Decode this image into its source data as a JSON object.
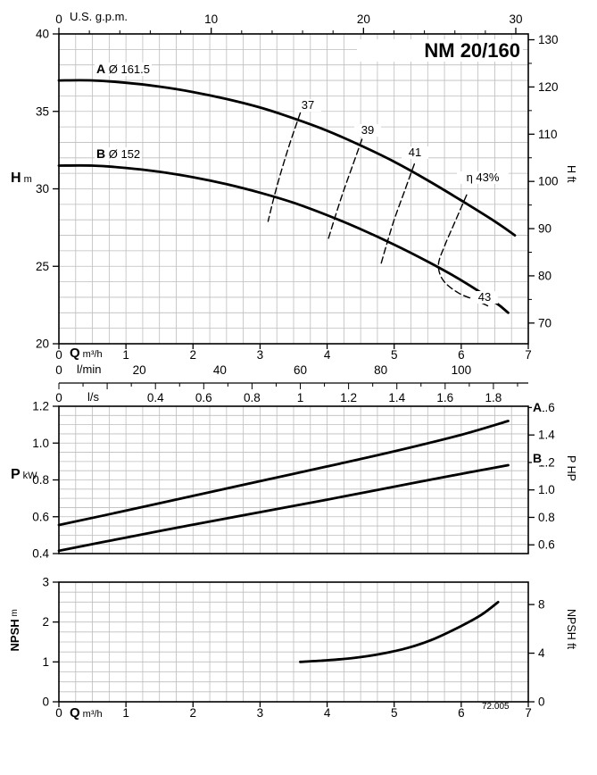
{
  "meta": {
    "footnote": "72.005"
  },
  "colors": {
    "curve": "#000000",
    "grid": "#bdbdbd",
    "axis": "#000000",
    "background": "#ffffff"
  },
  "chart_data": [
    {
      "name": "head-flow-chart",
      "type": "line",
      "title": "NM 20/160",
      "x": {
        "label": "Q",
        "unit": "m³/h",
        "min": 0,
        "max": 7,
        "ticks": [
          0,
          1,
          2,
          3,
          4,
          5,
          6,
          7
        ]
      },
      "x_lmin": {
        "label": "l/min",
        "ticks": [
          0,
          20,
          40,
          60,
          80,
          100
        ],
        "lmin_per_m3h": 16.6667
      },
      "x_ls": {
        "label": "l/s",
        "ticks": [
          0,
          0.4,
          0.6,
          0.8,
          1,
          1.2,
          1.4,
          1.6,
          1.8
        ],
        "ls_per_m3h": 0.277778
      },
      "x_gpm": {
        "label": "U.S. g.p.m.",
        "ticks": [
          0,
          10,
          20,
          30
        ],
        "gpm_per_m3h": 4.40287
      },
      "y": {
        "label": "H",
        "unit": "m",
        "min": 20,
        "max": 40,
        "ticks": [
          20,
          25,
          30,
          35,
          40
        ]
      },
      "y_ft": {
        "label": "H ft",
        "ticks": [
          70,
          80,
          90,
          100,
          110,
          120,
          130
        ],
        "ft_per_m": 3.28084
      },
      "curves": [
        {
          "name": "A",
          "label_letter": "A",
          "label_diameter": "Ø 161.5",
          "points": [
            [
              0,
              37
            ],
            [
              0.5,
              37
            ],
            [
              1,
              36.85
            ],
            [
              1.5,
              36.6
            ],
            [
              2,
              36.25
            ],
            [
              2.5,
              35.8
            ],
            [
              3,
              35.25
            ],
            [
              3.5,
              34.55
            ],
            [
              4,
              33.75
            ],
            [
              4.5,
              32.8
            ],
            [
              5,
              31.75
            ],
            [
              5.5,
              30.55
            ],
            [
              6,
              29.25
            ],
            [
              6.5,
              27.9
            ],
            [
              6.8,
              27
            ]
          ]
        },
        {
          "name": "B",
          "label_letter": "B",
          "label_diameter": "Ø 152",
          "points": [
            [
              0,
              31.5
            ],
            [
              0.5,
              31.5
            ],
            [
              1,
              31.35
            ],
            [
              1.5,
              31.1
            ],
            [
              2,
              30.75
            ],
            [
              2.5,
              30.3
            ],
            [
              3,
              29.75
            ],
            [
              3.5,
              29.1
            ],
            [
              4,
              28.3
            ],
            [
              4.5,
              27.4
            ],
            [
              5,
              26.4
            ],
            [
              5.5,
              25.3
            ],
            [
              6,
              24.1
            ],
            [
              6.5,
              22.7
            ],
            [
              6.7,
              22
            ]
          ]
        }
      ],
      "efficiency_lines": [
        {
          "name": "37",
          "points": [
            [
              3.6,
              34.9
            ],
            [
              3.45,
              33
            ],
            [
              3.32,
              31.2
            ],
            [
              3.21,
              29.5
            ],
            [
              3.12,
              27.9
            ]
          ]
        },
        {
          "name": "39",
          "points": [
            [
              4.52,
              33.2
            ],
            [
              4.38,
              31.5
            ],
            [
              4.24,
              29.8
            ],
            [
              4.12,
              28.2
            ],
            [
              4.02,
              26.8
            ]
          ]
        },
        {
          "name": "41",
          "points": [
            [
              5.3,
              31.6
            ],
            [
              5.15,
              29.8
            ],
            [
              5,
              28
            ],
            [
              4.88,
              26.3
            ],
            [
              4.8,
              25.1
            ]
          ]
        },
        {
          "name": "43",
          "points": [
            [
              6.08,
              29.6
            ],
            [
              5.9,
              27.8
            ],
            [
              5.75,
              26.3
            ],
            [
              5.66,
              25.1
            ],
            [
              5.73,
              24.1
            ],
            [
              5.95,
              23.3
            ],
            [
              6.22,
              22.8
            ],
            [
              6.42,
              22.4
            ]
          ]
        }
      ],
      "efficiency_labels": [
        {
          "text": "37"
        },
        {
          "text": "39"
        },
        {
          "text": "41"
        },
        {
          "text": "η 43%"
        },
        {
          "text": "43"
        }
      ]
    },
    {
      "name": "power-chart",
      "type": "line",
      "x": {
        "min": 0,
        "max": 7
      },
      "y": {
        "label": "P",
        "unit": "kW",
        "min": 0.4,
        "max": 1.2,
        "ticks": [
          0.4,
          0.6,
          0.8,
          1,
          1.2
        ]
      },
      "y_hp": {
        "label": "P HP",
        "ticks": [
          0.6,
          0.8,
          1,
          1.2,
          1.4,
          1.6
        ],
        "kw_per_hp": 0.7457
      },
      "curves": [
        {
          "name": "A",
          "points": [
            [
              0,
              0.555
            ],
            [
              1,
              0.633
            ],
            [
              2,
              0.713
            ],
            [
              3,
              0.793
            ],
            [
              4,
              0.873
            ],
            [
              5,
              0.955
            ],
            [
              6,
              1.045
            ],
            [
              6.7,
              1.12
            ]
          ]
        },
        {
          "name": "B",
          "points": [
            [
              0,
              0.415
            ],
            [
              1,
              0.487
            ],
            [
              2,
              0.557
            ],
            [
              3,
              0.625
            ],
            [
              4,
              0.693
            ],
            [
              5,
              0.763
            ],
            [
              6,
              0.833
            ],
            [
              6.7,
              0.88
            ]
          ]
        }
      ]
    },
    {
      "name": "npsh-chart",
      "type": "line",
      "x": {
        "label": "Q",
        "unit": "m³/h",
        "min": 0,
        "max": 7,
        "ticks": [
          0,
          1,
          2,
          3,
          4,
          5,
          6,
          7
        ]
      },
      "y": {
        "label": "NPSH",
        "unit": "m",
        "min": 0,
        "max": 3,
        "ticks": [
          0,
          1,
          2,
          3
        ]
      },
      "y_ft": {
        "label": "NPSH ft",
        "ticks": [
          0,
          4,
          8
        ],
        "ft_per_m": 3.28084
      },
      "curve": {
        "points": [
          [
            3.6,
            1
          ],
          [
            4,
            1.04
          ],
          [
            4.4,
            1.1
          ],
          [
            4.8,
            1.2
          ],
          [
            5.2,
            1.35
          ],
          [
            5.6,
            1.58
          ],
          [
            6,
            1.9
          ],
          [
            6.3,
            2.18
          ],
          [
            6.55,
            2.5
          ]
        ]
      }
    }
  ]
}
